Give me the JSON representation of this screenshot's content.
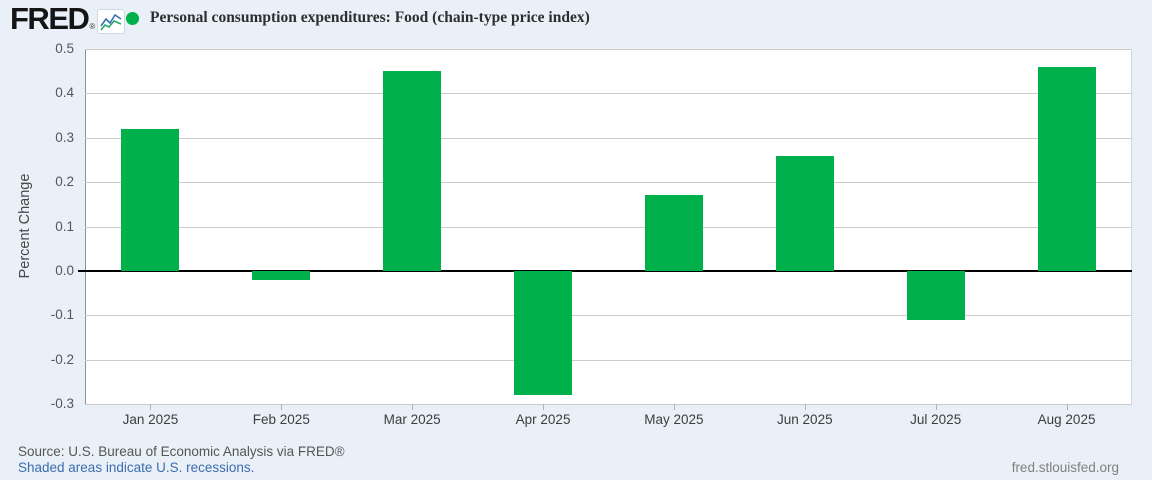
{
  "header": {
    "logo_text": "FRED",
    "logo_registered": "®"
  },
  "chart_data": {
    "type": "bar",
    "title": "Personal consumption expenditures: Food (chain-type price index)",
    "categories": [
      "Jan 2025",
      "Feb 2025",
      "Mar 2025",
      "Apr 2025",
      "May 2025",
      "Jun 2025",
      "Jul 2025",
      "Aug 2025"
    ],
    "values": [
      0.32,
      -0.02,
      0.45,
      -0.28,
      0.17,
      0.26,
      -0.11,
      0.46
    ],
    "xlabel": "",
    "ylabel": "Percent Change",
    "ylim": [
      -0.3,
      0.5
    ],
    "yticks": [
      0.5,
      0.4,
      0.3,
      0.2,
      0.1,
      0.0,
      -0.1,
      -0.2,
      -0.3
    ],
    "grid": true,
    "legend_position": "top-left",
    "bar_color": "#00b04a",
    "grid_color": "#cccccc",
    "zero_line_color": "#000000"
  },
  "footer": {
    "source": "Source: U.S. Bureau of Economic Analysis via FRED®",
    "recession_note": "Shaded areas indicate U.S. recessions.",
    "site": "fred.stlouisfed.org"
  },
  "colors": {
    "page_background": "#e9f0f8",
    "plot_background": "#ffffff",
    "link_blue": "#3b6db0"
  }
}
